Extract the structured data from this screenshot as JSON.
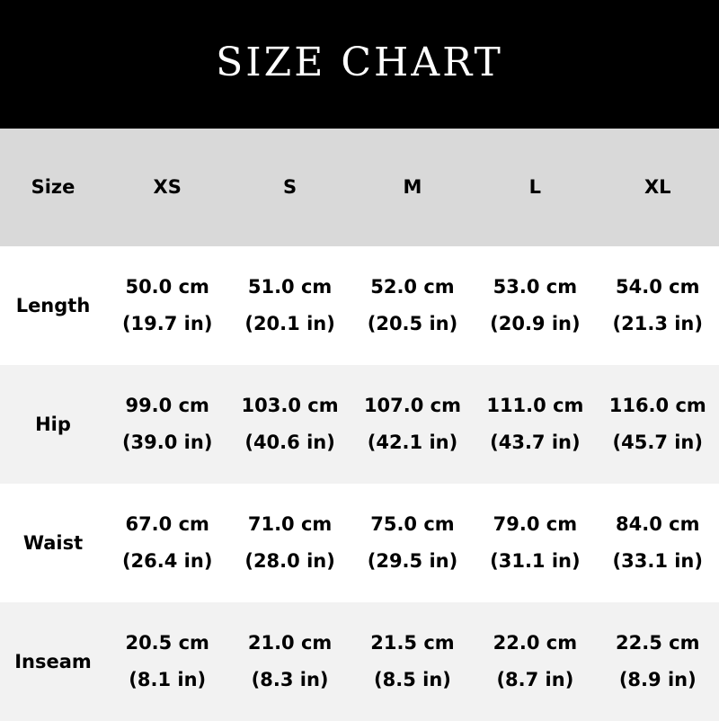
{
  "title": "SIZE CHART",
  "header": [
    "Size",
    "XS",
    "S",
    "M",
    "L",
    "XL"
  ],
  "rows": [
    {
      "label": "Length",
      "values": [
        {
          "cm": "50.0 cm",
          "in": "(19.7 in)"
        },
        {
          "cm": "51.0 cm",
          "in": "(20.1 in)"
        },
        {
          "cm": "52.0 cm",
          "in": "(20.5 in)"
        },
        {
          "cm": "53.0 cm",
          "in": "(20.9 in)"
        },
        {
          "cm": "54.0 cm",
          "in": "(21.3 in)"
        }
      ]
    },
    {
      "label": "Hip",
      "values": [
        {
          "cm": "99.0 cm",
          "in": "(39.0 in)"
        },
        {
          "cm": "103.0 cm",
          "in": "(40.6 in)"
        },
        {
          "cm": "107.0 cm",
          "in": "(42.1 in)"
        },
        {
          "cm": "111.0 cm",
          "in": "(43.7 in)"
        },
        {
          "cm": "116.0 cm",
          "in": "(45.7 in)"
        }
      ]
    },
    {
      "label": "Waist",
      "values": [
        {
          "cm": "67.0 cm",
          "in": "(26.4 in)"
        },
        {
          "cm": "71.0 cm",
          "in": "(28.0 in)"
        },
        {
          "cm": "75.0 cm",
          "in": "(29.5 in)"
        },
        {
          "cm": "79.0 cm",
          "in": "(31.1 in)"
        },
        {
          "cm": "84.0 cm",
          "in": "(33.1 in)"
        }
      ]
    },
    {
      "label": "Inseam",
      "values": [
        {
          "cm": "20.5 cm",
          "in": "(8.1 in)"
        },
        {
          "cm": "21.0 cm",
          "in": "(8.3 in)"
        },
        {
          "cm": "21.5 cm",
          "in": "(8.5 in)"
        },
        {
          "cm": "22.0 cm",
          "in": "(8.7 in)"
        },
        {
          "cm": "22.5 cm",
          "in": "(8.9 in)"
        }
      ]
    }
  ]
}
